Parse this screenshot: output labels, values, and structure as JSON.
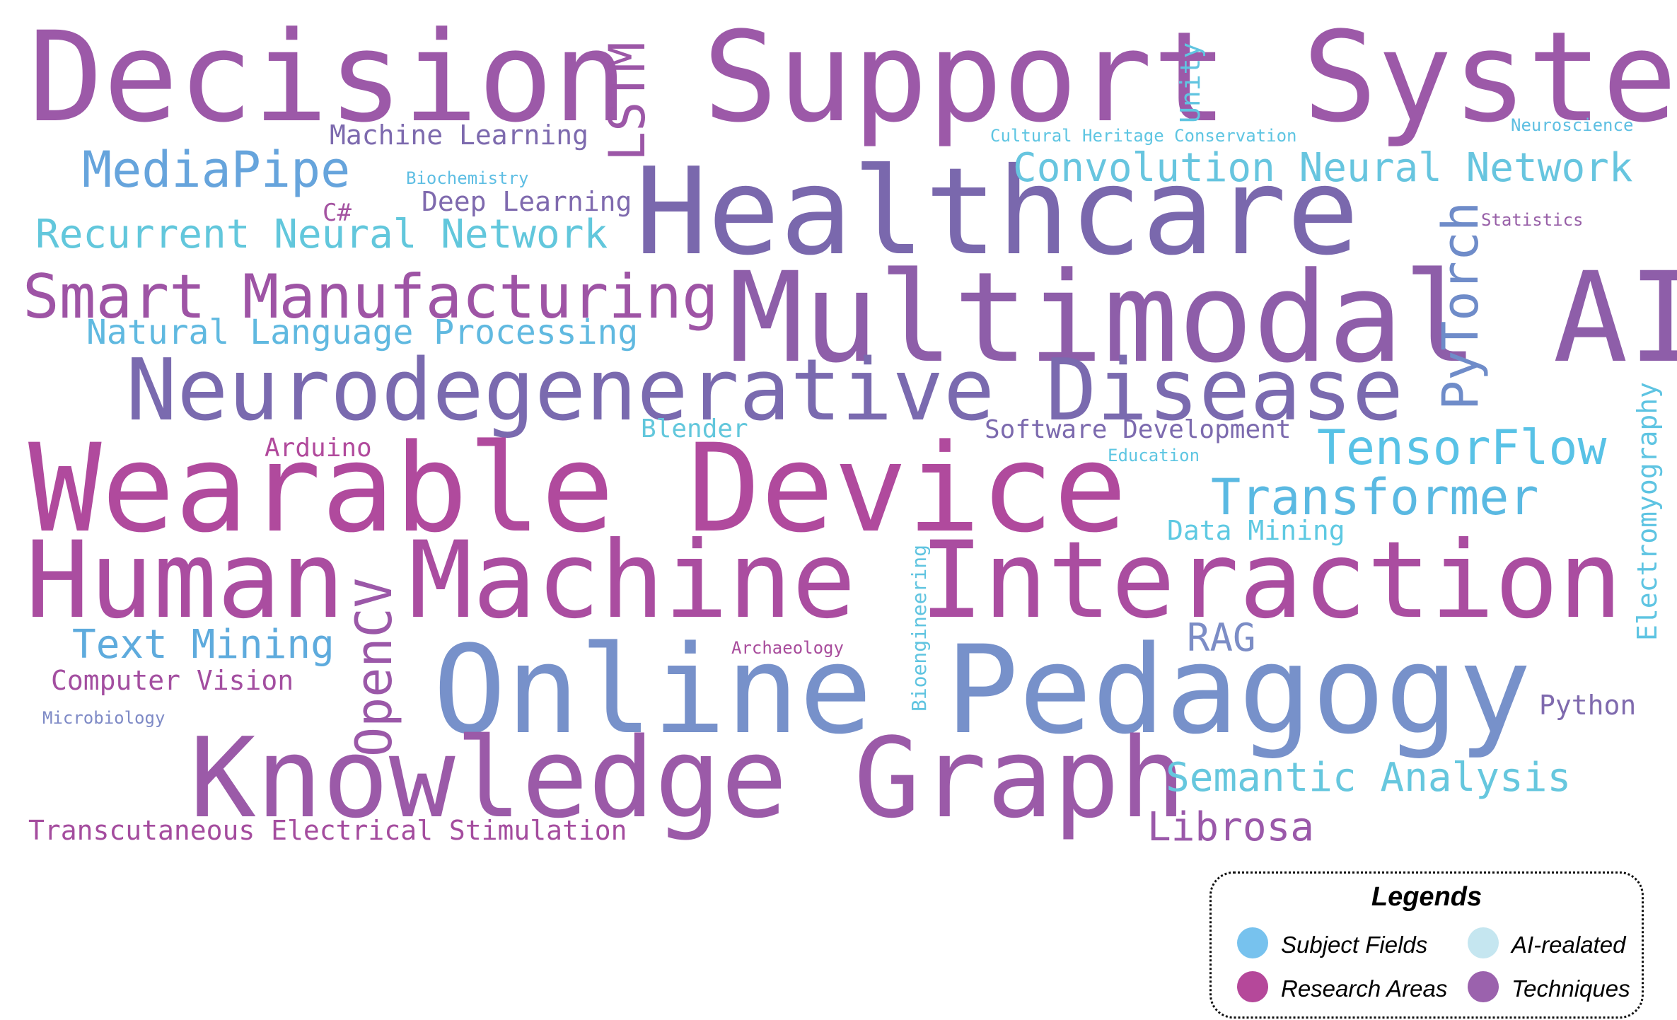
{
  "words": {
    "decision_support_system": "Decision Support System",
    "healthcare": "Healthcare",
    "multimodal_ai": "Multimodal AI",
    "neurodegenerative_disease": "Neurodegenerative Disease",
    "wearable_device": "Wearable Device",
    "human_machine_interaction": "Human Machine Interaction",
    "online_pedagogy": "Online Pedagogy",
    "knowledge_graph": "Knowledge Graph",
    "lstm": "LSTM",
    "unity": "Unity",
    "machine_learning": "Machine Learning",
    "cultural_heritage_conservation": "Cultural Heritage Conservation",
    "neuroscience": "Neuroscience",
    "mediapipe": "MediaPipe",
    "biochemistry": "Biochemistry",
    "convolution_neural_network": "Convolution Neural Network",
    "csharp": "C#",
    "deep_learning": "Deep Learning",
    "pytorch": "PyTorch",
    "statistics": "Statistics",
    "recurrent_neural_network": "Recurrent Neural Network",
    "smart_manufacturing": "Smart Manufacturing",
    "natural_language_processing": "Natural Language Processing",
    "electromyography": "Electromyography",
    "arduino": "Arduino",
    "blender": "Blender",
    "software_development": "Software Development",
    "tensorflow": "TensorFlow",
    "education": "Education",
    "transformer": "Transformer",
    "data_mining": "Data Mining",
    "opencv": "OpenCV",
    "bioengineering": "Bioengineering",
    "text_mining": "Text Mining",
    "rag": "RAG",
    "archaeology": "Archaeology",
    "computer_vision": "Computer Vision",
    "microbiology": "Microbiology",
    "python": "Python",
    "semantic_analysis": "Semantic Analysis",
    "transcutaneous_electrical_stimulation": "Transcutaneous Electrical Stimulation",
    "librosa": "Librosa"
  },
  "colors": {
    "subject_fields": "#77c2ee",
    "ai_related": "#c5e6f0",
    "research_areas": "#b5489a",
    "techniques": "#9b62ad"
  },
  "legend": {
    "title": "Legends",
    "items": [
      {
        "label": "Subject Fields",
        "color": "#77c2ee"
      },
      {
        "label": "AI-realated",
        "color": "#c5e6f0"
      },
      {
        "label": "Research Areas",
        "color": "#b5489a"
      },
      {
        "label": "Techniques",
        "color": "#9b62ad"
      }
    ]
  }
}
